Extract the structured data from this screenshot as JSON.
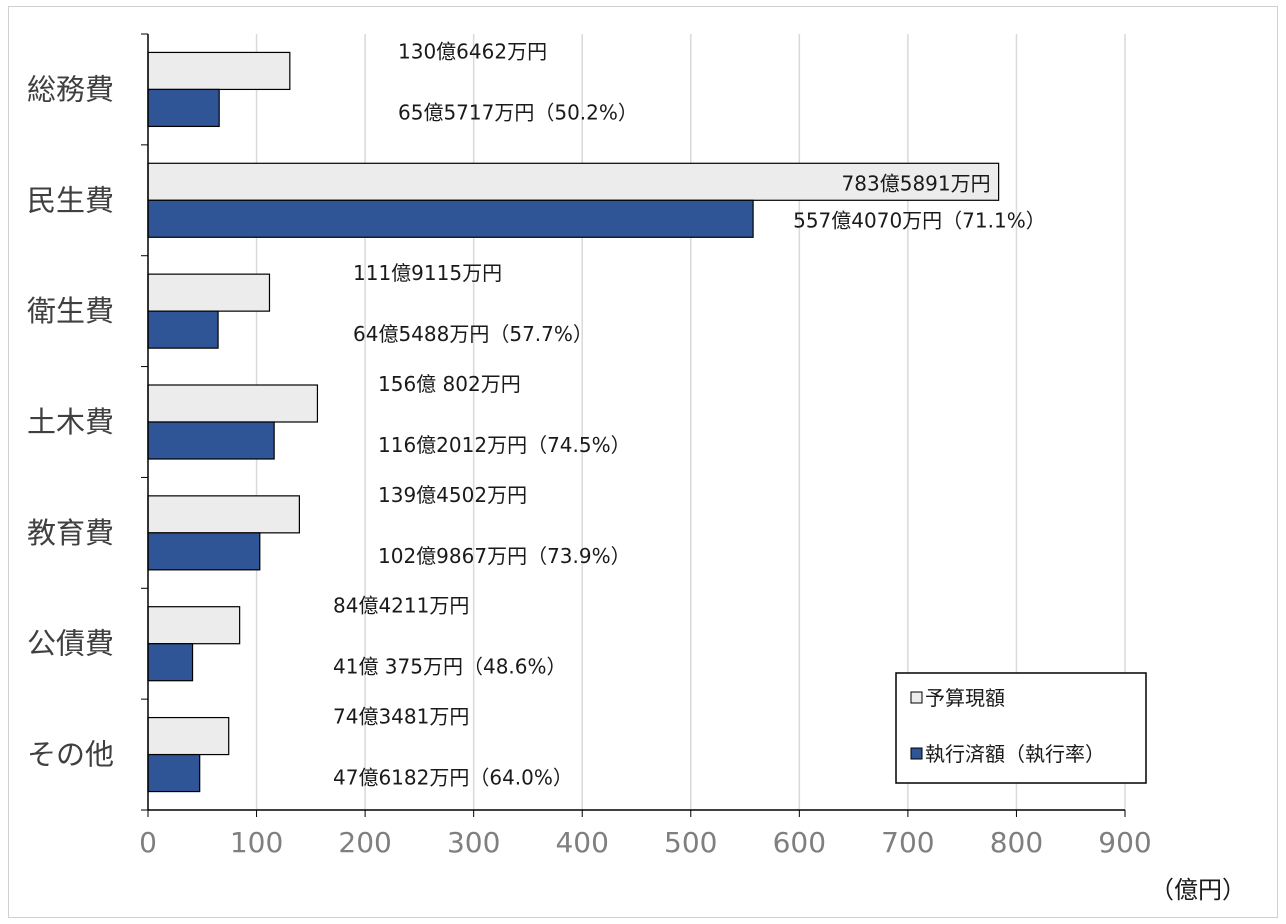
{
  "chart_data": {
    "type": "bar",
    "orientation": "horizontal",
    "categories": [
      "総務費",
      "民生費",
      "衛生費",
      "土木費",
      "教育費",
      "公債費",
      "その他"
    ],
    "series": [
      {
        "name": "予算現額",
        "color": "#ececec",
        "values": [
          130.6462,
          783.5891,
          111.9115,
          156.0802,
          139.4502,
          84.4211,
          74.3481
        ],
        "labels": [
          "130億6462万円",
          "783億5891万円",
          "111億9115万円",
          "156億 802万円",
          "139億4502万円",
          "84億4211万円",
          "74億3481万円"
        ]
      },
      {
        "name": "執行済額（執行率）",
        "color": "#2f5597",
        "values": [
          65.5717,
          557.407,
          64.5488,
          116.2012,
          102.9867,
          41.0375,
          47.6182
        ],
        "labels": [
          "65億5717万円（50.2%）",
          "557億4070万円（71.1%）",
          "64億5488万円（57.7%）",
          "116億2012万円（74.5%）",
          "102億9867万円（73.9%）",
          "41億 375万円（48.6%）",
          "47億6182万円（64.0%）"
        ]
      }
    ],
    "xlim": [
      0,
      900
    ],
    "xticks": [
      "0",
      "100",
      "200",
      "300",
      "400",
      "500",
      "600",
      "700",
      "800",
      "900"
    ],
    "unit_label": "（億円）",
    "grid": "vertical",
    "legend_position": "bottom-right"
  }
}
